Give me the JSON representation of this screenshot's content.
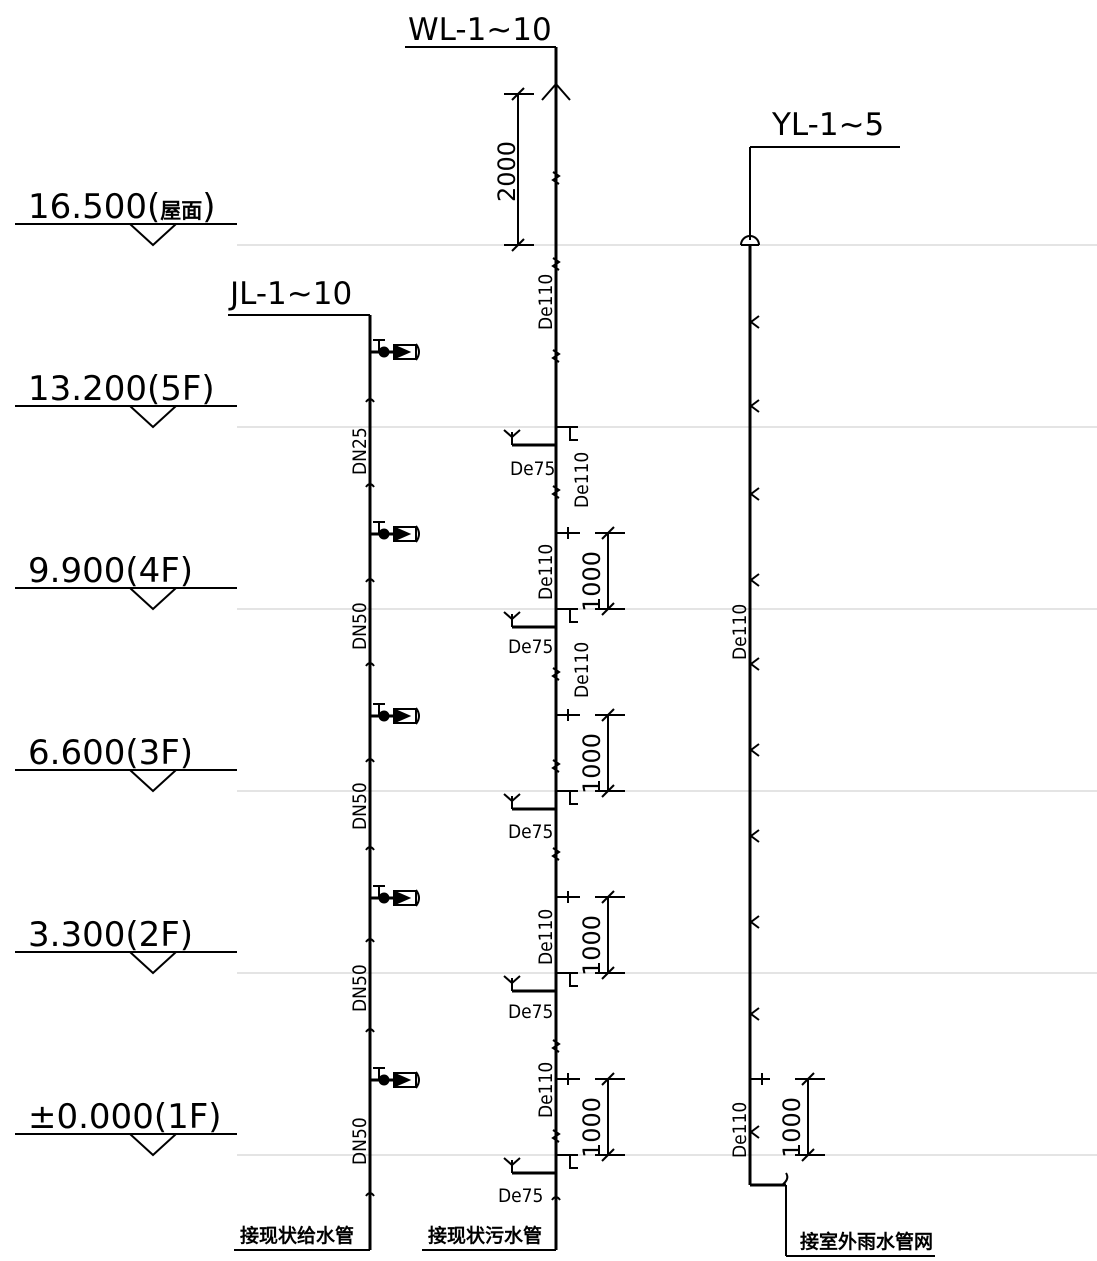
{
  "levels": [
    {
      "label": "16.500(",
      "cn": "屋面",
      "close": ")"
    },
    {
      "label": "13.200(5F)"
    },
    {
      "label": "9.900(4F)"
    },
    {
      "label": "6.600(3F)"
    },
    {
      "label": "3.300(2F)"
    },
    {
      "label": "±0.000(1F)"
    }
  ],
  "risers": {
    "water_supply": {
      "tag": "JL-1~10",
      "sizes": [
        "DN25",
        "DN50",
        "DN50",
        "DN50",
        "DN50"
      ],
      "note": "接现状给水管"
    },
    "sewage": {
      "tag": "WL-1~10",
      "vent_height": "2000",
      "main_sizes": [
        "De110",
        "De110",
        "De110",
        "De110",
        "De110"
      ],
      "upper_sizes": [
        "De110",
        "De110"
      ],
      "branch_size": "De75",
      "floor_drain_dim": "1000",
      "note": "接现状污水管"
    },
    "rainwater": {
      "tag": "YL-1~5",
      "main_size": "De110",
      "bottom_size": "De110",
      "dim": "1000",
      "note": "接室外雨水管网"
    }
  }
}
